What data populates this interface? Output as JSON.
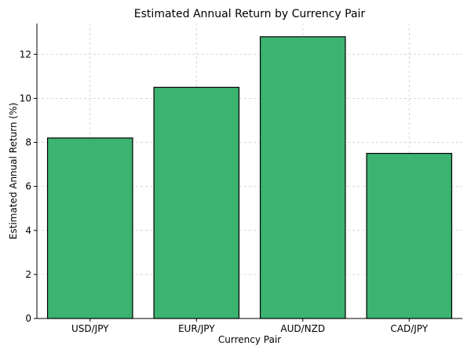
{
  "chart_data": {
    "type": "bar",
    "title": "Estimated Annual Return by Currency Pair",
    "xlabel": "Currency Pair",
    "ylabel": "Estimated Annual Return (%)",
    "categories": [
      "USD/JPY",
      "EUR/JPY",
      "AUD/NZD",
      "CAD/JPY"
    ],
    "values": [
      8.2,
      10.5,
      12.8,
      7.5
    ],
    "ylim": [
      0,
      13.4
    ],
    "yticks": [
      0,
      2,
      4,
      6,
      8,
      10,
      12
    ],
    "grid": true,
    "bar_color": "#3cb371",
    "edge_color": "#000000"
  }
}
